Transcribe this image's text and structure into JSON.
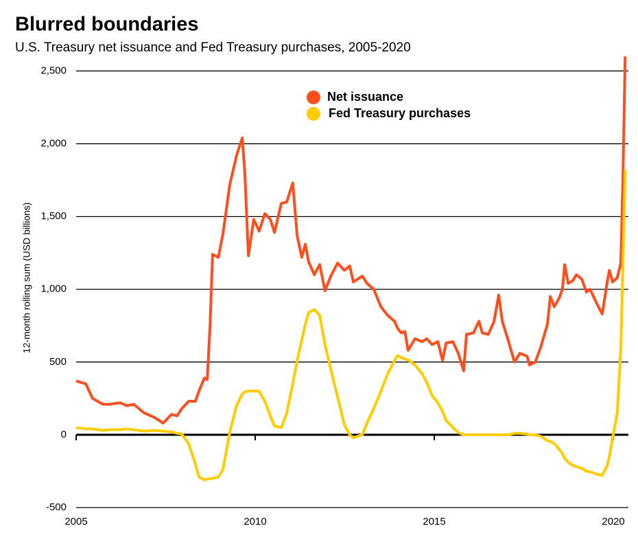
{
  "chart_data": {
    "type": "line",
    "title": "Blurred boundaries",
    "subtitle": "U.S. Treasury net issuance and Fed Treasury purchases, 2005-2020",
    "y_label": "12-month rolling sum (USD billions)",
    "x": [
      2005.0,
      2005.27,
      2005.46,
      2005.75,
      2005.94,
      2006.23,
      2006.42,
      2006.61,
      2006.9,
      2007.18,
      2007.43,
      2007.66,
      2007.82,
      2007.95,
      2008.14,
      2008.33,
      2008.43,
      2008.58,
      2008.66,
      2008.74,
      2008.81,
      2008.97,
      2009.1,
      2009.29,
      2009.48,
      2009.64,
      2009.71,
      2009.81,
      2009.96,
      2010.11,
      2010.27,
      2010.42,
      2010.54,
      2010.73,
      2010.88,
      2011.05,
      2011.17,
      2011.3,
      2011.4,
      2011.49,
      2011.65,
      2011.8,
      2011.95,
      2012.11,
      2012.3,
      2012.49,
      2012.64,
      2012.74,
      2012.99,
      2013.12,
      2013.31,
      2013.51,
      2013.7,
      2013.89,
      2013.98,
      2014.08,
      2014.18,
      2014.27,
      2014.46,
      2014.66,
      2014.79,
      2014.94,
      2015.1,
      2015.23,
      2015.33,
      2015.52,
      2015.67,
      2015.82,
      2015.9,
      2016.09,
      2016.25,
      2016.34,
      2016.51,
      2016.67,
      2016.8,
      2016.9,
      2017.05,
      2017.24,
      2017.39,
      2017.59,
      2017.66,
      2017.82,
      2017.97,
      2018.16,
      2018.24,
      2018.35,
      2018.49,
      2018.58,
      2018.64,
      2018.74,
      2018.87,
      2018.97,
      2019.12,
      2019.25,
      2019.35,
      2019.54,
      2019.69,
      2019.83,
      2019.89,
      2019.98,
      2020.11,
      2020.21,
      2020.27,
      2020.33
    ],
    "series": [
      {
        "name": "Net issuance",
        "color": "#fc4f1f",
        "values": [
          370,
          350,
          250,
          210,
          210,
          220,
          200,
          210,
          150,
          120,
          80,
          140,
          130,
          180,
          230,
          230,
          300,
          390,
          380,
          750,
          1240,
          1220,
          1380,
          1720,
          1920,
          2040,
          1800,
          1230,
          1480,
          1400,
          1520,
          1480,
          1390,
          1590,
          1600,
          1730,
          1370,
          1220,
          1310,
          1190,
          1100,
          1170,
          990,
          1090,
          1180,
          1130,
          1160,
          1050,
          1090,
          1040,
          1000,
          880,
          820,
          780,
          730,
          700,
          710,
          580,
          660,
          640,
          660,
          620,
          640,
          510,
          630,
          640,
          560,
          440,
          690,
          700,
          780,
          700,
          690,
          780,
          960,
          780,
          660,
          500,
          560,
          540,
          480,
          500,
          600,
          760,
          950,
          880,
          940,
          1000,
          1170,
          1040,
          1060,
          1100,
          1070,
          980,
          1000,
          900,
          830,
          1050,
          1130,
          1050,
          1080,
          1180,
          1800,
          2600
        ]
      },
      {
        "name": "Fed Treasury purchases",
        "color": "#ffcc00",
        "values": [
          50,
          40,
          40,
          30,
          35,
          35,
          40,
          35,
          25,
          30,
          25,
          20,
          10,
          5,
          -60,
          -200,
          -290,
          -310,
          -305,
          -300,
          -300,
          -290,
          -240,
          20,
          200,
          280,
          295,
          300,
          300,
          300,
          230,
          130,
          60,
          50,
          150,
          350,
          510,
          650,
          760,
          840,
          860,
          820,
          620,
          450,
          260,
          70,
          0,
          -20,
          0,
          80,
          180,
          300,
          420,
          510,
          545,
          530,
          520,
          515,
          480,
          420,
          360,
          270,
          220,
          160,
          100,
          50,
          15,
          0,
          0,
          0,
          0,
          0,
          0,
          0,
          0,
          0,
          0,
          10,
          10,
          5,
          0,
          0,
          -10,
          -40,
          -45,
          -60,
          -100,
          -130,
          -160,
          -190,
          -210,
          -220,
          -230,
          -250,
          -255,
          -270,
          -280,
          -210,
          -150,
          -20,
          150,
          600,
          1200,
          1820
        ]
      }
    ],
    "xlim": [
      2005,
      2020.42
    ],
    "xticks": [
      2005,
      2010,
      2015,
      2020
    ],
    "ylim": [
      -500,
      2620
    ],
    "yticks": [
      -500,
      0,
      500,
      {
        "value": 1000,
        "label": "1,000"
      },
      {
        "value": 1500,
        "label": "1,500"
      },
      {
        "value": 2000,
        "label": "2,000"
      },
      {
        "value": 2500,
        "label": "2,500"
      }
    ],
    "grid": true
  }
}
